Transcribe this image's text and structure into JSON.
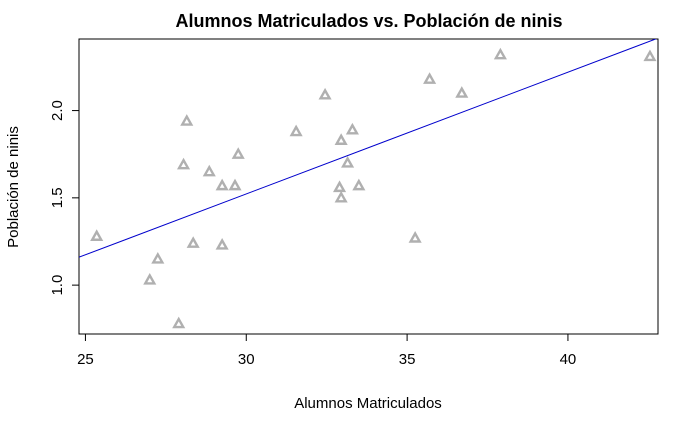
{
  "chart_data": {
    "type": "scatter",
    "title": "Alumnos Matriculados vs. Población de ninis",
    "xlabel": "Alumnos Matriculados",
    "ylabel": "Población de ninis",
    "xlim": [
      24.8,
      42.8
    ],
    "ylim": [
      0.72,
      2.41
    ],
    "xticks": [
      25,
      30,
      35,
      40
    ],
    "yticks": [
      1.0,
      1.5,
      2.0
    ],
    "xtick_labels": [
      "25",
      "30",
      "35",
      "40"
    ],
    "ytick_labels": [
      "1.0",
      "1.5",
      "2.0"
    ],
    "grid": false,
    "marker": "open-triangle",
    "point_color": "#b0b0b0",
    "line_color": "#0000cc",
    "points": [
      {
        "x": 25.35,
        "y": 1.28
      },
      {
        "x": 27.0,
        "y": 1.03
      },
      {
        "x": 27.25,
        "y": 1.15
      },
      {
        "x": 27.9,
        "y": 0.78
      },
      {
        "x": 28.05,
        "y": 1.69
      },
      {
        "x": 28.15,
        "y": 1.94
      },
      {
        "x": 28.35,
        "y": 1.24
      },
      {
        "x": 28.85,
        "y": 1.65
      },
      {
        "x": 29.25,
        "y": 1.57
      },
      {
        "x": 29.25,
        "y": 1.23
      },
      {
        "x": 29.65,
        "y": 1.57
      },
      {
        "x": 29.75,
        "y": 1.75
      },
      {
        "x": 31.55,
        "y": 1.88
      },
      {
        "x": 32.45,
        "y": 2.09
      },
      {
        "x": 32.9,
        "y": 1.56
      },
      {
        "x": 32.95,
        "y": 1.5
      },
      {
        "x": 32.95,
        "y": 1.83
      },
      {
        "x": 33.15,
        "y": 1.7
      },
      {
        "x": 33.3,
        "y": 1.89
      },
      {
        "x": 33.5,
        "y": 1.57
      },
      {
        "x": 35.25,
        "y": 1.27
      },
      {
        "x": 35.7,
        "y": 2.18
      },
      {
        "x": 36.7,
        "y": 2.1
      },
      {
        "x": 37.9,
        "y": 2.32
      },
      {
        "x": 42.55,
        "y": 2.31
      }
    ],
    "fit_line": {
      "x": [
        24.8,
        42.8
      ],
      "y": [
        1.16,
        2.415
      ]
    }
  }
}
